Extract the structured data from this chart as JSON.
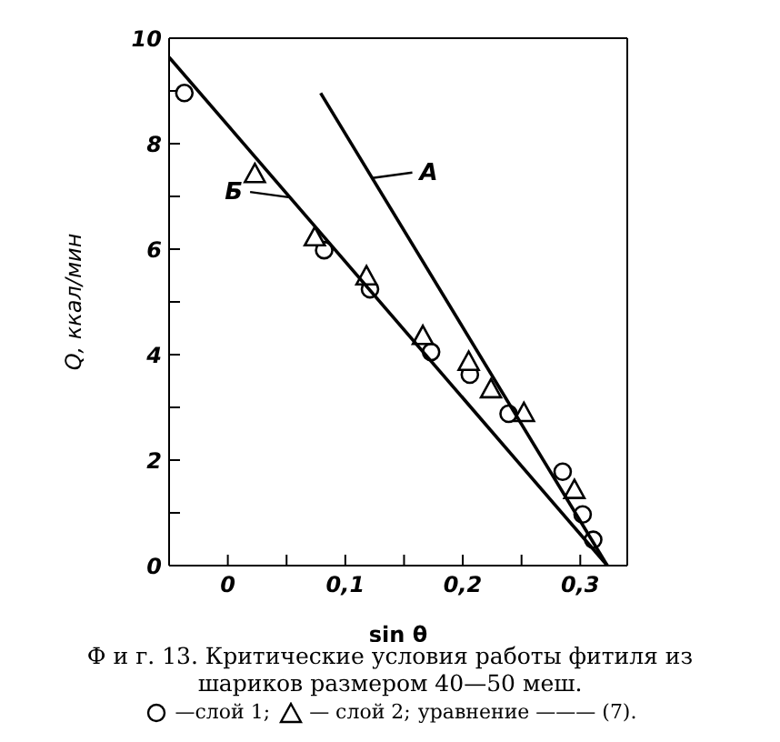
{
  "chart_data": {
    "type": "scatter",
    "title": "Ф и г. 13. Критические условия работы фитиля из шариков размером 40—50 меш.",
    "xlabel": "sin θ",
    "ylabel": "Q, ккал/мин",
    "xlim": [
      -0.05,
      0.34
    ],
    "ylim": [
      0,
      10
    ],
    "xticks": [
      {
        "value": 0,
        "label": "0"
      },
      {
        "value": 0.05,
        "label": null
      },
      {
        "value": 0.1,
        "label": "0,1"
      },
      {
        "value": 0.15,
        "label": null
      },
      {
        "value": 0.2,
        "label": "0,2"
      },
      {
        "value": 0.25,
        "label": null
      },
      {
        "value": 0.3,
        "label": "0,3"
      }
    ],
    "yticks": [
      0,
      {
        "value": 1,
        "label": null
      },
      2,
      {
        "value": 3,
        "label": null
      },
      4,
      {
        "value": 5,
        "label": null
      },
      6,
      {
        "value": 7,
        "label": null
      },
      8,
      {
        "value": 9,
        "label": null
      },
      10
    ],
    "grid": false,
    "legend": "bottom",
    "series": [
      {
        "name": "—слой 1;",
        "marker": "circle",
        "color": "#000000",
        "x": [
          -0.037,
          0.082,
          0.121,
          0.173,
          0.206,
          0.239,
          0.285,
          0.302,
          0.311
        ],
        "values": [
          8.96,
          5.98,
          5.24,
          4.05,
          3.62,
          2.88,
          1.78,
          0.97,
          0.49
        ]
      },
      {
        "name": "— слой 2;",
        "marker": "triangle",
        "color": "#000000",
        "x": [
          0.023,
          0.074,
          0.118,
          0.166,
          0.205,
          0.224,
          0.252,
          0.295
        ],
        "values": [
          7.41,
          6.21,
          5.47,
          4.34,
          3.85,
          3.33,
          2.88,
          1.42
        ]
      },
      {
        "type": "line",
        "marker": "none",
        "color": "#000000",
        "x": [
          0.079,
          0.323
        ],
        "values": [
          8.96,
          0
        ]
      },
      {
        "type": "line",
        "marker": "none",
        "color": "#000000",
        "x": [
          -0.05,
          0.323
        ],
        "values": [
          9.64,
          0
        ]
      }
    ],
    "annotations": [
      {
        "text": "А",
        "x": 0.123,
        "y": 7.35
      },
      {
        "text": "Б",
        "x": 0.053,
        "y": 6.98
      },
      "уравнение ——— (7)."
    ]
  }
}
